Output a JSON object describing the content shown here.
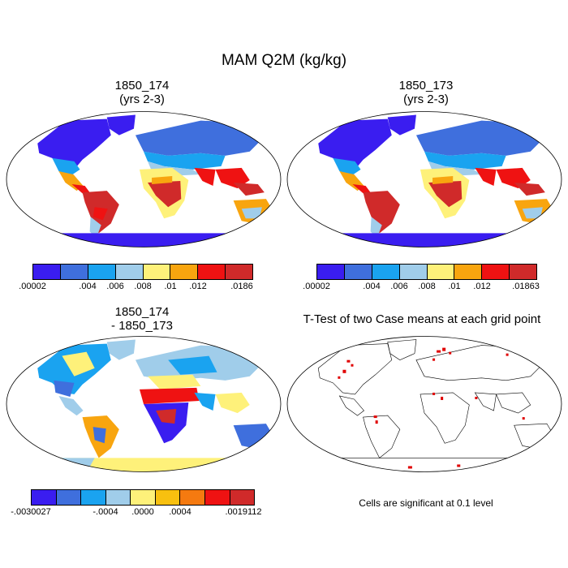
{
  "main_title": "MAM Q2M (kg/kg)",
  "panels": [
    {
      "title": "1850_174\n(yrs 2-3)",
      "colorbar": {
        "colors": [
          "#3a1df0",
          "#3f6fdd",
          "#1aa3f0",
          "#a0cdea",
          "#fef17a",
          "#f8a50f",
          "#ef1212",
          "#d02a2a"
        ],
        "labels": [
          ".00002",
          ".004",
          ".006",
          ".008",
          ".01",
          ".012",
          ".0186"
        ]
      }
    },
    {
      "title": "1850_173\n(yrs 2-3)",
      "colorbar": {
        "colors": [
          "#3a1df0",
          "#3f6fdd",
          "#1aa3f0",
          "#a0cdea",
          "#fef17a",
          "#f8a50f",
          "#ef1212",
          "#d02a2a"
        ],
        "labels": [
          ".00002",
          ".004",
          ".006",
          ".008",
          ".01",
          ".012",
          ".01863"
        ]
      }
    },
    {
      "title": "1850_174\n- 1850_173",
      "colorbar": {
        "colors": [
          "#3a1df0",
          "#3f6fdd",
          "#1aa3f0",
          "#a0cdea",
          "#fef17a",
          "#f8c00f",
          "#f57a10",
          "#ef1212",
          "#d02a2a"
        ],
        "labels": [
          "-.0030027",
          "-.0004",
          ".0000",
          ".0004",
          ".0019112"
        ]
      }
    },
    {
      "title": "T-Test of two Case means at each grid point",
      "note": "Cells are significant at 0.1 level"
    }
  ]
}
